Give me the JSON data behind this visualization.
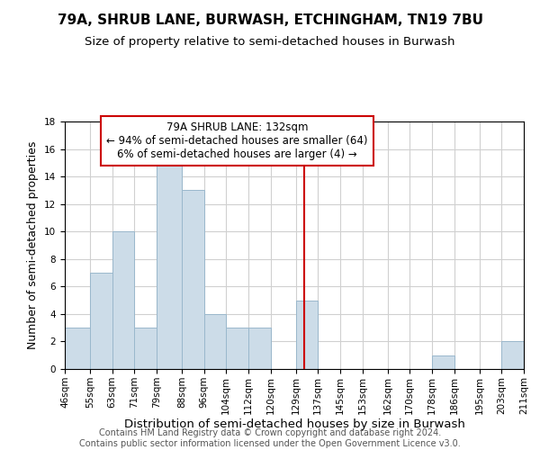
{
  "title": "79A, SHRUB LANE, BURWASH, ETCHINGHAM, TN19 7BU",
  "subtitle": "Size of property relative to semi-detached houses in Burwash",
  "xlabel": "Distribution of semi-detached houses by size in Burwash",
  "ylabel": "Number of semi-detached properties",
  "footer_line1": "Contains HM Land Registry data © Crown copyright and database right 2024.",
  "footer_line2": "Contains public sector information licensed under the Open Government Licence v3.0.",
  "bin_labels": [
    "46sqm",
    "55sqm",
    "63sqm",
    "71sqm",
    "79sqm",
    "88sqm",
    "96sqm",
    "104sqm",
    "112sqm",
    "120sqm",
    "129sqm",
    "137sqm",
    "145sqm",
    "153sqm",
    "162sqm",
    "170sqm",
    "178sqm",
    "186sqm",
    "195sqm",
    "203sqm",
    "211sqm"
  ],
  "bin_edges": [
    46,
    55,
    63,
    71,
    79,
    88,
    96,
    104,
    112,
    120,
    129,
    137,
    145,
    153,
    162,
    170,
    178,
    186,
    195,
    203,
    211
  ],
  "counts": [
    3,
    7,
    10,
    3,
    15,
    13,
    4,
    3,
    3,
    0,
    5,
    0,
    0,
    0,
    0,
    0,
    1,
    0,
    0,
    2,
    0
  ],
  "bar_color": "#ccdce8",
  "bar_edgecolor": "#9ab8cc",
  "property_line_x": 132,
  "property_line_color": "#cc0000",
  "annotation_title": "79A SHRUB LANE: 132sqm",
  "annotation_line1": "← 94% of semi-detached houses are smaller (64)",
  "annotation_line2": "6% of semi-detached houses are larger (4) →",
  "annotation_box_edgecolor": "#cc0000",
  "annotation_box_facecolor": "#ffffff",
  "ylim": [
    0,
    18
  ],
  "yticks": [
    0,
    2,
    4,
    6,
    8,
    10,
    12,
    14,
    16,
    18
  ],
  "background_color": "#ffffff",
  "grid_color": "#d0d0d0",
  "title_fontsize": 11,
  "subtitle_fontsize": 9.5,
  "xlabel_fontsize": 9.5,
  "ylabel_fontsize": 9,
  "tick_fontsize": 7.5,
  "annotation_fontsize": 8.5,
  "footer_fontsize": 7
}
